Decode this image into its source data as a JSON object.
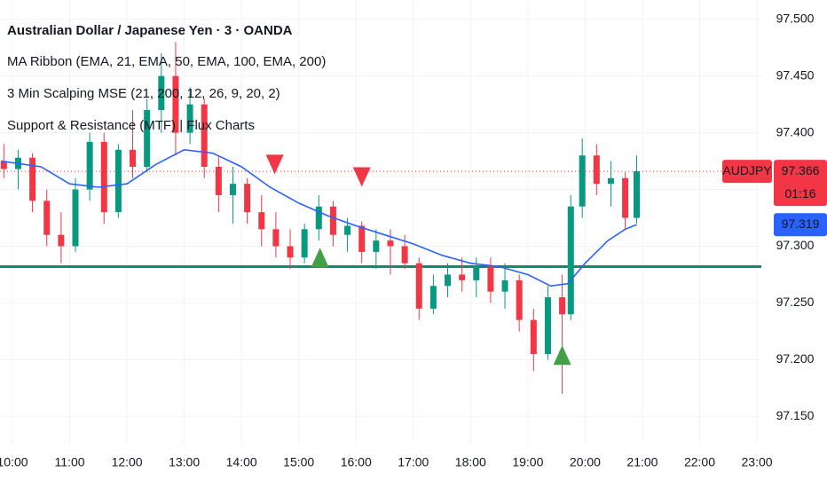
{
  "chart_data": {
    "type": "candlestick",
    "title": "Australian Dollar / Japanese Yen · 3 · OANDA",
    "indicators": [
      "MA Ribbon (EMA, 21, EMA, 50, EMA, 100, EMA, 200)",
      "3 Min Scalping MSE (21, 200, 12, 26, 9, 20, 2)",
      "Support & Resistance (MTF) | Flux Charts"
    ],
    "xlim": [
      9.783,
      23.077
    ],
    "ylim": [
      97.126,
      97.517
    ],
    "xticks": [
      {
        "value": 10,
        "label": "10:00"
      },
      {
        "value": 11,
        "label": "11:00"
      },
      {
        "value": 12,
        "label": "12:00"
      },
      {
        "value": 13,
        "label": "13:00"
      },
      {
        "value": 14,
        "label": "14:00"
      },
      {
        "value": 15,
        "label": "15:00"
      },
      {
        "value": 16,
        "label": "16:00"
      },
      {
        "value": 17,
        "label": "17:00"
      },
      {
        "value": 18,
        "label": "18:00"
      },
      {
        "value": 19,
        "label": "19:00"
      },
      {
        "value": 20,
        "label": "20:00"
      },
      {
        "value": 21,
        "label": "21:00"
      },
      {
        "value": 22,
        "label": "22:00"
      },
      {
        "value": 23,
        "label": "23:00"
      }
    ],
    "yticks": [
      {
        "value": 97.15,
        "label": "97.150"
      },
      {
        "value": 97.2,
        "label": "97.200"
      },
      {
        "value": 97.25,
        "label": "97.250"
      },
      {
        "value": 97.3,
        "label": "97.300"
      },
      {
        "value": 97.35,
        "label": "97.350"
      },
      {
        "value": 97.4,
        "label": "97.400"
      },
      {
        "value": 97.45,
        "label": "97.450"
      },
      {
        "value": 97.5,
        "label": "97.500"
      }
    ],
    "grid": true,
    "up_color": "#089981",
    "down_color": "#f23645",
    "candles": {
      "x": [
        9.85,
        10.1,
        10.35,
        10.6,
        10.85,
        11.1,
        11.35,
        11.6,
        11.85,
        12.1,
        12.35,
        12.6,
        12.85,
        13.1,
        13.35,
        13.6,
        13.85,
        14.1,
        14.35,
        14.6,
        14.85,
        15.1,
        15.35,
        15.6,
        15.85,
        16.1,
        16.35,
        16.6,
        16.85,
        17.1,
        17.35,
        17.6,
        17.85,
        18.1,
        18.35,
        18.6,
        18.85,
        19.1,
        19.35,
        19.6,
        19.75,
        19.95,
        20.2,
        20.45,
        20.7,
        20.9
      ],
      "open": [
        97.375,
        97.368,
        97.378,
        97.34,
        97.31,
        97.3,
        97.35,
        97.392,
        97.33,
        97.385,
        97.37,
        97.42,
        97.45,
        97.4,
        97.425,
        97.37,
        97.345,
        97.355,
        97.33,
        97.315,
        97.3,
        97.29,
        97.315,
        97.335,
        97.31,
        97.318,
        97.295,
        97.305,
        97.3,
        97.285,
        97.245,
        97.265,
        97.275,
        97.27,
        97.282,
        97.26,
        97.27,
        97.235,
        97.205,
        97.255,
        97.24,
        97.335,
        97.38,
        97.355,
        97.36,
        97.325
      ],
      "high": [
        97.39,
        97.385,
        97.382,
        97.35,
        97.33,
        97.36,
        97.4,
        97.4,
        97.39,
        97.42,
        97.43,
        97.47,
        97.48,
        97.44,
        97.43,
        97.38,
        97.37,
        97.36,
        97.345,
        97.33,
        97.315,
        97.32,
        97.345,
        97.34,
        97.325,
        97.322,
        97.315,
        97.315,
        97.31,
        97.29,
        97.275,
        97.285,
        97.29,
        97.29,
        97.29,
        97.285,
        97.275,
        97.245,
        97.265,
        97.275,
        97.345,
        97.395,
        97.39,
        97.375,
        97.365,
        97.38
      ],
      "low": [
        97.36,
        97.35,
        97.33,
        97.3,
        97.285,
        97.295,
        97.34,
        97.32,
        97.325,
        97.36,
        97.365,
        97.4,
        97.38,
        97.39,
        97.36,
        97.33,
        97.32,
        97.32,
        97.3,
        97.29,
        97.28,
        97.285,
        97.305,
        97.3,
        97.295,
        97.285,
        97.28,
        97.275,
        97.28,
        97.235,
        97.24,
        97.255,
        97.26,
        97.255,
        97.25,
        97.245,
        97.225,
        97.19,
        97.2,
        97.17,
        97.235,
        97.325,
        97.345,
        97.335,
        97.315,
        97.32
      ],
      "close": [
        97.368,
        97.378,
        97.34,
        97.31,
        97.3,
        97.35,
        97.392,
        97.33,
        97.385,
        97.37,
        97.42,
        97.45,
        97.4,
        97.425,
        97.37,
        97.345,
        97.355,
        97.33,
        97.315,
        97.3,
        97.29,
        97.315,
        97.335,
        97.31,
        97.318,
        97.295,
        97.305,
        97.3,
        97.285,
        97.245,
        97.265,
        97.275,
        97.27,
        97.282,
        97.26,
        97.27,
        97.235,
        97.205,
        97.255,
        97.24,
        97.335,
        97.38,
        97.355,
        97.36,
        97.325,
        97.366
      ]
    },
    "ema": {
      "color": "#2962ff",
      "x": [
        9.8,
        10.5,
        11,
        11.5,
        12,
        12.5,
        13,
        13.5,
        14,
        14.5,
        15,
        15.5,
        16,
        16.5,
        17,
        17.5,
        18,
        18.5,
        19,
        19.4,
        19.7,
        20,
        20.4,
        20.7,
        20.9
      ],
      "values": [
        97.375,
        97.37,
        97.355,
        97.352,
        97.355,
        97.372,
        97.385,
        97.382,
        97.37,
        97.352,
        97.338,
        97.327,
        97.318,
        97.31,
        97.302,
        97.292,
        97.285,
        97.282,
        97.275,
        97.265,
        97.267,
        97.285,
        97.305,
        97.315,
        97.319
      ]
    },
    "signals": [
      {
        "direction": "down",
        "x": 14.58,
        "value": 97.372,
        "color": "#f23645"
      },
      {
        "direction": "down",
        "x": 16.1,
        "value": 97.361,
        "color": "#f23645"
      },
      {
        "direction": "up",
        "x": 15.37,
        "value": 97.29,
        "color": "#43a047"
      },
      {
        "direction": "up",
        "x": 19.6,
        "value": 97.204,
        "color": "#43a047"
      }
    ],
    "support_level": {
      "value": 97.282,
      "color": "#138a6e"
    },
    "last_price": {
      "symbol": "AUDJPY",
      "value": 97.366,
      "countdown": "01:16",
      "color": "#f23645"
    },
    "ema_last": {
      "value": 97.319,
      "color": "#2962ff"
    }
  }
}
